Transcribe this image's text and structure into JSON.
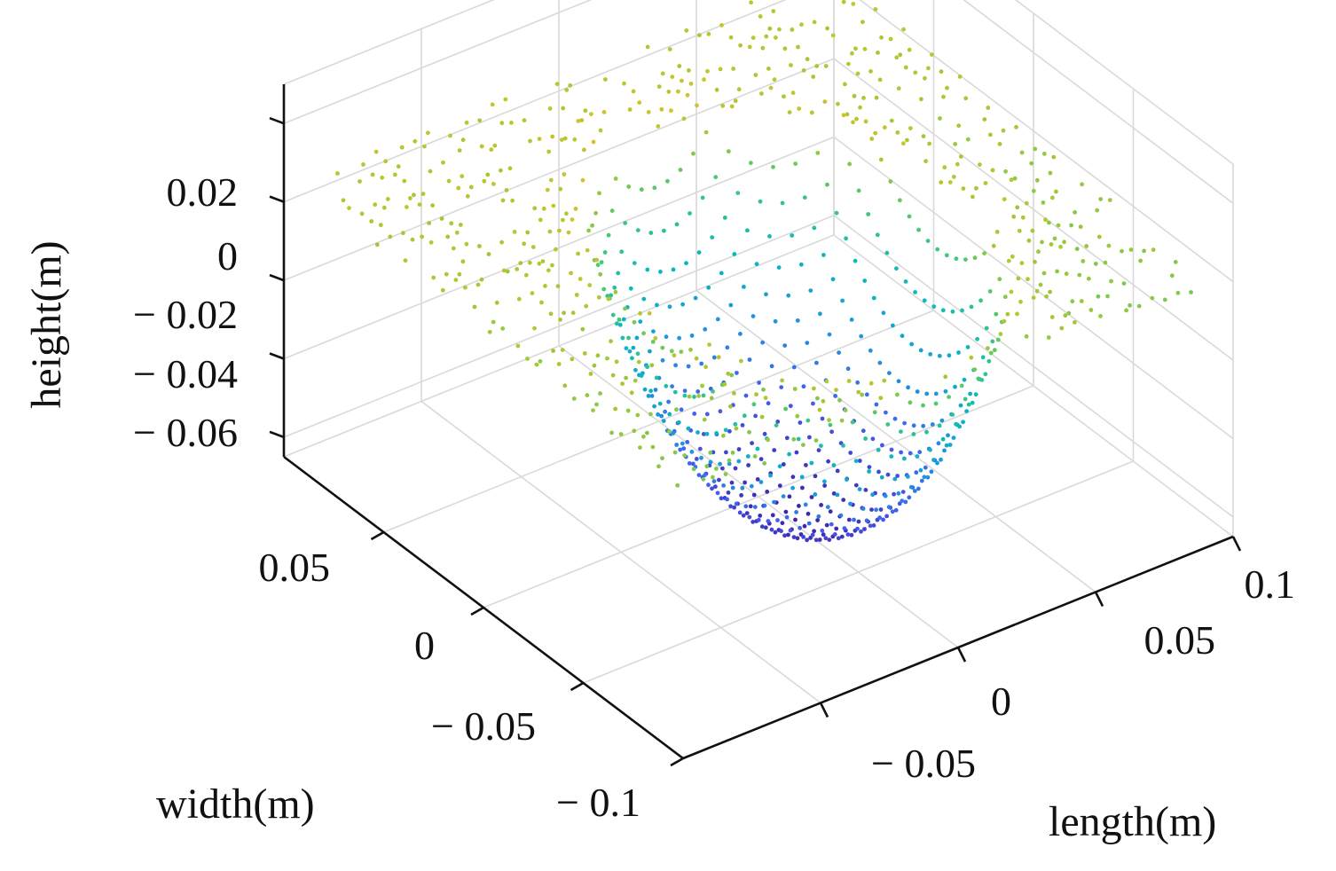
{
  "chart_data": {
    "type": "scatter3d",
    "title": "",
    "xlabel": "length(m)",
    "ylabel": "width(m)",
    "zlabel": "height(m)",
    "xlim": [
      -0.1,
      0.1
    ],
    "ylim": [
      -0.1,
      0.1
    ],
    "zlim": [
      -0.065,
      0.03
    ],
    "grid": true,
    "colormap": "parula",
    "x_ticks": [
      {
        "value": -0.05,
        "label": "− 0.05"
      },
      {
        "value": 0,
        "label": "0"
      },
      {
        "value": 0.05,
        "label": "0.05"
      },
      {
        "value": 0.1,
        "label": "0.1"
      }
    ],
    "y_ticks": [
      {
        "value": 0.05,
        "label": "0.05"
      },
      {
        "value": 0,
        "label": "0"
      },
      {
        "value": -0.05,
        "label": "− 0.05"
      },
      {
        "value": -0.1,
        "label": "− 0.1"
      }
    ],
    "z_ticks": [
      {
        "value": 0.02,
        "label": "0.02"
      },
      {
        "value": 0,
        "label": "0"
      },
      {
        "value": -0.02,
        "label": "− 0.02"
      },
      {
        "value": -0.04,
        "label": "− 0.04"
      },
      {
        "value": -0.06,
        "label": "− 0.06"
      }
    ],
    "surface": {
      "description_type": "bowl-shaped depression point cloud",
      "rim_height": 0.004,
      "min_height": -0.063,
      "center": [
        0.0,
        -0.02
      ],
      "radius_length": 0.055,
      "radius_width": 0.075
    }
  }
}
